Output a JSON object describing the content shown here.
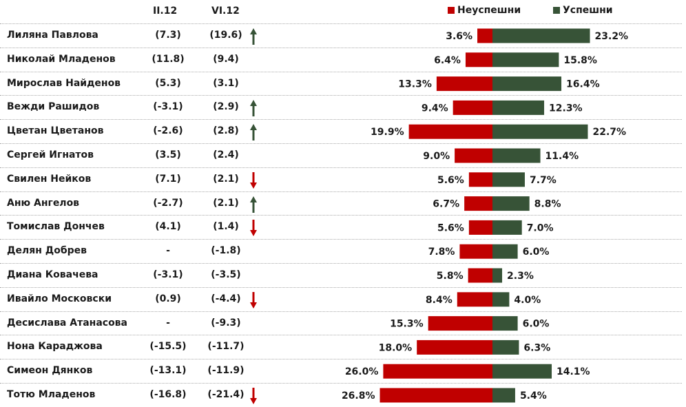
{
  "header": {
    "col_feb": "II.12",
    "col_jun": "VI.12"
  },
  "chart_data": {
    "type": "bar",
    "orientation": "horizontal",
    "stacked": "diverging",
    "legend": "top-right",
    "series_colors": {
      "negative": "#c00000",
      "positive": "#375337"
    },
    "series": [
      {
        "name": "Неуспешни",
        "values": [
          3.6,
          6.4,
          13.3,
          9.4,
          19.9,
          9.0,
          5.6,
          6.7,
          5.6,
          7.8,
          5.8,
          8.4,
          15.3,
          18.0,
          26.0,
          26.8
        ]
      },
      {
        "name": "Успешни",
        "values": [
          23.2,
          15.8,
          16.4,
          12.3,
          22.7,
          11.4,
          7.7,
          8.8,
          7.0,
          6.0,
          2.3,
          4.0,
          6.0,
          6.3,
          14.1,
          5.4
        ]
      }
    ],
    "rows": [
      {
        "name": "Лиляна Павлова",
        "feb": "(7.3)",
        "jun": "(19.6)",
        "trend": "up",
        "neg_label": "3.6%",
        "pos_label": "23.2%"
      },
      {
        "name": "Николай Младенов",
        "feb": "(11.8)",
        "jun": "(9.4)",
        "trend": "",
        "neg_label": "6.4%",
        "pos_label": "15.8%"
      },
      {
        "name": "Мирослав Найденов",
        "feb": "(5.3)",
        "jun": "(3.1)",
        "trend": "",
        "neg_label": "13.3%",
        "pos_label": "16.4%"
      },
      {
        "name": "Вежди Рашидов",
        "feb": "(-3.1)",
        "jun": "(2.9)",
        "trend": "up",
        "neg_label": "9.4%",
        "pos_label": "12.3%"
      },
      {
        "name": "Цветан Цветанов",
        "feb": "(-2.6)",
        "jun": "(2.8)",
        "trend": "up",
        "neg_label": "19.9%",
        "pos_label": "22.7%"
      },
      {
        "name": "Сергей Игнатов",
        "feb": "(3.5)",
        "jun": "(2.4)",
        "trend": "",
        "neg_label": "9.0%",
        "pos_label": "11.4%"
      },
      {
        "name": "Свилен Нейков",
        "feb": "(7.1)",
        "jun": "(2.1)",
        "trend": "down",
        "neg_label": "5.6%",
        "pos_label": "7.7%"
      },
      {
        "name": "Аню Ангелов",
        "feb": "(-2.7)",
        "jun": "(2.1)",
        "trend": "up",
        "neg_label": "6.7%",
        "pos_label": "8.8%"
      },
      {
        "name": "Томислав Дончев",
        "feb": "(4.1)",
        "jun": "(1.4)",
        "trend": "down",
        "neg_label": "5.6%",
        "pos_label": "7.0%"
      },
      {
        "name": "Делян Добрев",
        "feb": "-",
        "jun": "(-1.8)",
        "trend": "",
        "neg_label": "7.8%",
        "pos_label": "6.0%"
      },
      {
        "name": "Диана Ковачева",
        "feb": "(-3.1)",
        "jun": "(-3.5)",
        "trend": "",
        "neg_label": "5.8%",
        "pos_label": "2.3%"
      },
      {
        "name": "Ивайло Московски",
        "feb": "(0.9)",
        "jun": "(-4.4)",
        "trend": "down",
        "neg_label": "8.4%",
        "pos_label": "4.0%"
      },
      {
        "name": "Десислава Атанасова",
        "feb": "-",
        "jun": "(-9.3)",
        "trend": "",
        "neg_label": "15.3%",
        "pos_label": "6.0%"
      },
      {
        "name": "Нона Караджова",
        "feb": "(-15.5)",
        "jun": "(-11.7)",
        "trend": "",
        "neg_label": "18.0%",
        "pos_label": "6.3%"
      },
      {
        "name": "Симеон Дянков",
        "feb": "(-13.1)",
        "jun": "(-11.9)",
        "trend": "",
        "neg_label": "26.0%",
        "pos_label": "14.1%"
      },
      {
        "name": "Тотю Младенов",
        "feb": "(-16.8)",
        "jun": "(-21.4)",
        "trend": "down",
        "neg_label": "26.8%",
        "pos_label": "5.4%"
      }
    ]
  },
  "trend_colors": {
    "up": "#375337",
    "down": "#c00000"
  }
}
